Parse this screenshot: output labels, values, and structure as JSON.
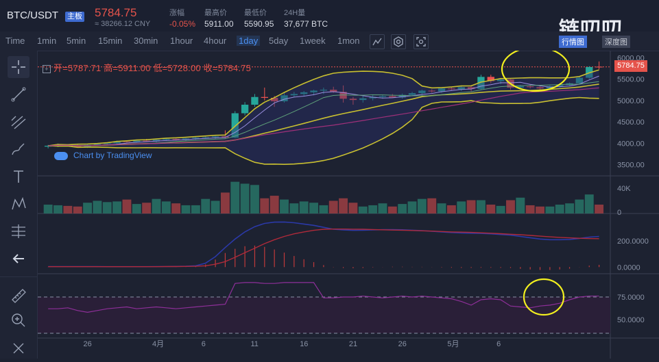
{
  "header": {
    "pair": "BTC/USDT",
    "main_badge": "主板",
    "last_price": "5784.75",
    "cny_price": "≈ 38266.12 CNY",
    "change_label": "涨幅",
    "change_value": "-0.05%",
    "high_label": "最高价",
    "high_value": "5911.00",
    "low_label": "最低价",
    "low_value": "5590.95",
    "volume_label": "24H量",
    "volume_value": "37,677 BTC"
  },
  "watermark": "链叨叨",
  "tabs": {
    "trade": "行情图",
    "depth": "深度图"
  },
  "timeframes": [
    "Time",
    "1min",
    "5min",
    "15min",
    "30min",
    "1hour",
    "4hour",
    "1day",
    "5day",
    "1week",
    "1mon"
  ],
  "active_timeframe": "1day",
  "legend": {
    "open": "开=5787.71",
    "high": "高=5911.00",
    "low": "低=5728.00",
    "close": "收=5784.75"
  },
  "brand": "Chart by TradingView",
  "price_tag": "5784.75",
  "axes": {
    "price_ticks": [
      "6000.00",
      "5500.00",
      "5000.00",
      "4500.00",
      "4000.00",
      "3500.00"
    ],
    "volume_ticks": [
      "40K",
      "0"
    ],
    "macd_ticks": [
      "200.0000",
      "0.0000"
    ],
    "rsi_ticks": [
      "75.0000",
      "50.0000"
    ],
    "x_ticks": [
      "26",
      "4月",
      "6",
      "11",
      "16",
      "21",
      "26",
      "5月",
      "6"
    ]
  },
  "colors": {
    "up": "#26a69a",
    "down": "#ef5350",
    "accent": "#4b8ff0",
    "highlight": "#f2ef1f"
  },
  "chart_data": {
    "type": "candlestick",
    "price_range": [
      3300,
      6100
    ],
    "candles": [
      [
        3920,
        3960,
        3880,
        3940
      ],
      [
        3940,
        3990,
        3910,
        3960
      ],
      [
        3960,
        3975,
        3930,
        3950
      ],
      [
        3950,
        3970,
        3900,
        3910
      ],
      [
        3910,
        3980,
        3890,
        3960
      ],
      [
        3960,
        4000,
        3940,
        3980
      ],
      [
        3980,
        4020,
        3950,
        4000
      ],
      [
        4000,
        4060,
        3980,
        4040
      ],
      [
        4040,
        4060,
        4000,
        4030
      ],
      [
        4030,
        4080,
        4010,
        4060
      ],
      [
        4060,
        4100,
        4030,
        4040
      ],
      [
        4040,
        4090,
        4020,
        4080
      ],
      [
        4080,
        4120,
        4050,
        4100
      ],
      [
        4100,
        4110,
        4060,
        4080
      ],
      [
        4080,
        4120,
        4060,
        4110
      ],
      [
        4110,
        4150,
        4080,
        4130
      ],
      [
        4130,
        4160,
        4100,
        4140
      ],
      [
        4140,
        4170,
        4100,
        4160
      ],
      [
        4160,
        4300,
        4100,
        4130
      ],
      [
        4130,
        4750,
        4120,
        4700
      ],
      [
        4700,
        4960,
        4650,
        4900
      ],
      [
        4900,
        5150,
        4850,
        5080
      ],
      [
        5080,
        5300,
        5000,
        5060
      ],
      [
        5060,
        5100,
        4850,
        4980
      ],
      [
        4980,
        5180,
        4950,
        5120
      ],
      [
        5120,
        5200,
        5080,
        5150
      ],
      [
        5150,
        5220,
        5100,
        5190
      ],
      [
        5190,
        5250,
        5120,
        5230
      ],
      [
        5230,
        5300,
        5150,
        5250
      ],
      [
        5250,
        5320,
        5180,
        5200
      ],
      [
        5200,
        5350,
        4950,
        5040
      ],
      [
        5040,
        5080,
        4900,
        5010
      ],
      [
        5010,
        5100,
        4950,
        5050
      ],
      [
        5050,
        5120,
        5000,
        5080
      ],
      [
        5080,
        5130,
        5040,
        5100
      ],
      [
        5100,
        5150,
        5060,
        5070
      ],
      [
        5070,
        5160,
        5040,
        5130
      ],
      [
        5130,
        5200,
        5100,
        5170
      ],
      [
        5170,
        5250,
        5120,
        5230
      ],
      [
        5230,
        5260,
        5180,
        5210
      ],
      [
        5210,
        5300,
        5180,
        5280
      ],
      [
        5280,
        5320,
        5240,
        5260
      ],
      [
        5260,
        5350,
        5220,
        5310
      ],
      [
        5310,
        5330,
        5200,
        5270
      ],
      [
        5270,
        5600,
        5240,
        5550
      ],
      [
        5550,
        5600,
        5400,
        5450
      ],
      [
        5450,
        5520,
        5380,
        5490
      ],
      [
        5490,
        5500,
        5250,
        5300
      ],
      [
        5300,
        5360,
        5260,
        5330
      ],
      [
        5330,
        5380,
        5280,
        5310
      ],
      [
        5310,
        5330,
        5240,
        5280
      ],
      [
        5280,
        5350,
        5240,
        5330
      ],
      [
        5330,
        5380,
        5300,
        5360
      ],
      [
        5360,
        5420,
        5330,
        5400
      ],
      [
        5400,
        5560,
        5380,
        5530
      ],
      [
        5530,
        5800,
        5500,
        5780
      ],
      [
        5787.71,
        5911,
        5728,
        5784.75
      ]
    ],
    "volume_range_k": [
      0,
      55
    ],
    "volume_k": [
      14,
      13,
      12,
      11,
      17,
      20,
      18,
      19,
      22,
      15,
      17,
      23,
      19,
      16,
      13,
      13,
      23,
      20,
      33,
      50,
      47,
      45,
      24,
      28,
      22,
      16,
      19,
      17,
      13,
      20,
      24,
      17,
      11,
      13,
      16,
      11,
      15,
      19,
      23,
      24,
      16,
      13,
      19,
      21,
      21,
      14,
      12,
      21,
      25,
      13,
      11,
      11,
      14,
      16,
      22,
      30,
      14
    ],
    "macd_range": [
      -30,
      390
    ],
    "macd_dif": [
      4,
      4,
      4,
      4,
      4,
      4,
      3,
      3,
      3,
      3,
      3,
      4,
      4,
      5,
      6,
      10,
      30,
      80,
      150,
      215,
      270,
      310,
      335,
      345,
      346,
      340,
      330,
      320,
      305,
      290,
      285,
      282,
      283,
      285,
      287,
      287,
      286,
      283,
      280,
      275,
      270,
      265,
      262,
      260,
      258,
      255,
      250,
      245,
      235,
      225,
      215,
      210,
      210,
      212,
      220,
      230,
      235
    ],
    "macd_dea": [
      3,
      3,
      3,
      3,
      3,
      3,
      3,
      3,
      3,
      3,
      3,
      3,
      4,
      4,
      5,
      6,
      10,
      22,
      42,
      75,
      110,
      145,
      180,
      210,
      235,
      255,
      270,
      282,
      290,
      292,
      292,
      291,
      290,
      288,
      286,
      284,
      283,
      281,
      278,
      276,
      273,
      270,
      268,
      266,
      263,
      260,
      256,
      252,
      248,
      243,
      237,
      232,
      228,
      224,
      221,
      219,
      218
    ]
  }
}
